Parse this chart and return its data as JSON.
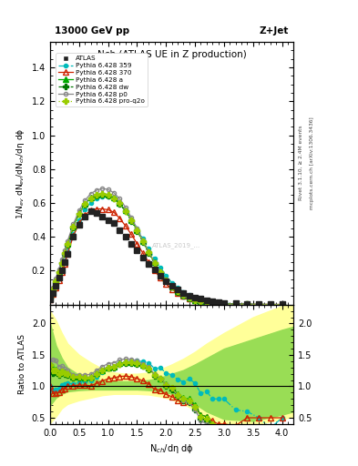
{
  "title_main": "Nch (ATLAS UE in Z production)",
  "title_top_left": "13000 GeV pp",
  "title_top_right": "Z+Jet",
  "ylabel_main": "1/N$_{ev}$ dN$_{ev}$/dN$_{ch}$/dη dϕ",
  "ylabel_ratio": "Ratio to ATLAS",
  "xlabel": "N$_{ch}$/dη dϕ",
  "right_label_top": "Rivet 3.1.10, ≥ 2.4M events",
  "right_label_bot": "mcplots.cern.ch [arXiv:1306.3436]",
  "watermark": "ATLAS_2019_...",
  "xlim": [
    0,
    4.2
  ],
  "ylim_main": [
    0,
    1.55
  ],
  "ylim_ratio": [
    0.4,
    2.3
  ],
  "yticks_main": [
    0.2,
    0.4,
    0.6,
    0.8,
    1.0,
    1.2,
    1.4
  ],
  "yticks_ratio": [
    0.5,
    1.0,
    1.5,
    2.0
  ],
  "x_atlas": [
    0.0,
    0.05,
    0.1,
    0.15,
    0.2,
    0.25,
    0.3,
    0.4,
    0.5,
    0.6,
    0.7,
    0.8,
    0.9,
    1.0,
    1.1,
    1.2,
    1.3,
    1.4,
    1.5,
    1.6,
    1.7,
    1.8,
    1.9,
    2.0,
    2.1,
    2.2,
    2.3,
    2.4,
    2.5,
    2.6,
    2.7,
    2.8,
    2.9,
    3.0,
    3.2,
    3.4,
    3.6,
    3.8,
    4.0
  ],
  "y_atlas": [
    0.03,
    0.07,
    0.11,
    0.16,
    0.2,
    0.25,
    0.3,
    0.4,
    0.47,
    0.52,
    0.55,
    0.54,
    0.52,
    0.5,
    0.48,
    0.44,
    0.4,
    0.36,
    0.32,
    0.28,
    0.24,
    0.21,
    0.17,
    0.14,
    0.11,
    0.09,
    0.07,
    0.05,
    0.04,
    0.035,
    0.025,
    0.02,
    0.015,
    0.01,
    0.008,
    0.005,
    0.004,
    0.003,
    0.002
  ],
  "atlas_color": "#222222",
  "series": [
    {
      "name": "Pythia 6.428 359",
      "color": "#00BBBB",
      "linestyle": "-.",
      "marker": "o",
      "markersize": 3,
      "filled": true,
      "x": [
        0.0,
        0.05,
        0.1,
        0.15,
        0.2,
        0.25,
        0.3,
        0.4,
        0.5,
        0.6,
        0.7,
        0.8,
        0.9,
        1.0,
        1.1,
        1.2,
        1.3,
        1.4,
        1.5,
        1.6,
        1.7,
        1.8,
        1.9,
        2.0,
        2.1,
        2.2,
        2.3,
        2.4,
        2.5,
        2.6,
        2.7,
        2.8,
        2.9,
        3.0,
        3.2,
        3.4,
        3.6,
        3.8,
        4.0
      ],
      "y": [
        0.03,
        0.065,
        0.105,
        0.155,
        0.205,
        0.26,
        0.315,
        0.415,
        0.5,
        0.565,
        0.6,
        0.625,
        0.635,
        0.64,
        0.63,
        0.6,
        0.555,
        0.505,
        0.45,
        0.39,
        0.33,
        0.27,
        0.22,
        0.17,
        0.13,
        0.1,
        0.075,
        0.056,
        0.042,
        0.031,
        0.023,
        0.016,
        0.012,
        0.008,
        0.005,
        0.003,
        0.002,
        0.001,
        0.001
      ]
    },
    {
      "name": "Pythia 6.428 370",
      "color": "#CC2200",
      "linestyle": "-",
      "marker": "^",
      "markersize": 4,
      "filled": false,
      "x": [
        0.0,
        0.05,
        0.1,
        0.15,
        0.2,
        0.25,
        0.3,
        0.4,
        0.5,
        0.6,
        0.7,
        0.8,
        0.9,
        1.0,
        1.1,
        1.2,
        1.3,
        1.4,
        1.5,
        1.6,
        1.7,
        1.8,
        1.9,
        2.0,
        2.1,
        2.2,
        2.3,
        2.4,
        2.5,
        2.6,
        2.7,
        2.8,
        2.9,
        3.0,
        3.2,
        3.4,
        3.6,
        3.8,
        4.0
      ],
      "y": [
        0.03,
        0.062,
        0.098,
        0.145,
        0.19,
        0.24,
        0.3,
        0.405,
        0.48,
        0.53,
        0.555,
        0.565,
        0.565,
        0.56,
        0.545,
        0.51,
        0.465,
        0.415,
        0.36,
        0.305,
        0.25,
        0.2,
        0.16,
        0.122,
        0.092,
        0.07,
        0.052,
        0.038,
        0.027,
        0.019,
        0.013,
        0.009,
        0.006,
        0.004,
        0.003,
        0.0025,
        0.002,
        0.0015,
        0.001
      ]
    },
    {
      "name": "Pythia 6.428 a",
      "color": "#00AA00",
      "linestyle": "-",
      "marker": "^",
      "markersize": 4,
      "filled": true,
      "x": [
        0.0,
        0.05,
        0.1,
        0.15,
        0.2,
        0.25,
        0.3,
        0.4,
        0.5,
        0.6,
        0.7,
        0.8,
        0.9,
        1.0,
        1.1,
        1.2,
        1.3,
        1.4,
        1.5,
        1.6,
        1.7,
        1.8,
        1.9,
        2.0,
        2.1,
        2.2,
        2.3,
        2.4,
        2.5,
        2.6,
        2.7,
        2.8,
        2.9,
        3.0,
        3.2,
        3.4,
        3.6,
        3.8,
        4.0
      ],
      "y": [
        0.04,
        0.09,
        0.14,
        0.195,
        0.25,
        0.305,
        0.36,
        0.46,
        0.54,
        0.595,
        0.63,
        0.65,
        0.655,
        0.65,
        0.63,
        0.6,
        0.555,
        0.5,
        0.44,
        0.375,
        0.31,
        0.25,
        0.19,
        0.145,
        0.108,
        0.079,
        0.057,
        0.04,
        0.028,
        0.019,
        0.013,
        0.008,
        0.005,
        0.003,
        0.002,
        0.0015,
        0.001,
        0.001,
        0.0005
      ]
    },
    {
      "name": "Pythia 6.428 dw",
      "color": "#007700",
      "linestyle": "-.",
      "marker": "P",
      "markersize": 4,
      "filled": true,
      "x": [
        0.0,
        0.05,
        0.1,
        0.15,
        0.2,
        0.25,
        0.3,
        0.4,
        0.5,
        0.6,
        0.7,
        0.8,
        0.9,
        1.0,
        1.1,
        1.2,
        1.3,
        1.4,
        1.5,
        1.6,
        1.7,
        1.8,
        1.9,
        2.0,
        2.1,
        2.2,
        2.3,
        2.4,
        2.5,
        2.6,
        2.7,
        2.8,
        2.9,
        3.0,
        3.2,
        3.4,
        3.6,
        3.8,
        4.0
      ],
      "y": [
        0.04,
        0.085,
        0.135,
        0.19,
        0.245,
        0.3,
        0.355,
        0.455,
        0.535,
        0.59,
        0.625,
        0.645,
        0.65,
        0.645,
        0.625,
        0.595,
        0.55,
        0.495,
        0.435,
        0.37,
        0.305,
        0.245,
        0.19,
        0.142,
        0.105,
        0.076,
        0.054,
        0.037,
        0.025,
        0.017,
        0.011,
        0.007,
        0.004,
        0.003,
        0.002,
        0.0015,
        0.001,
        0.0008,
        0.0005
      ]
    },
    {
      "name": "Pythia 6.428 p0",
      "color": "#888888",
      "linestyle": "-",
      "marker": "o",
      "markersize": 3,
      "filled": false,
      "x": [
        0.0,
        0.05,
        0.1,
        0.15,
        0.2,
        0.25,
        0.3,
        0.4,
        0.5,
        0.6,
        0.7,
        0.8,
        0.9,
        1.0,
        1.1,
        1.2,
        1.3,
        1.4,
        1.5,
        1.6,
        1.7,
        1.8,
        1.9,
        2.0,
        2.1,
        2.2,
        2.3,
        2.4,
        2.5,
        2.6,
        2.7,
        2.8,
        2.9,
        3.0,
        3.2,
        3.4,
        3.6,
        3.8,
        4.0
      ],
      "y": [
        0.04,
        0.1,
        0.155,
        0.21,
        0.265,
        0.32,
        0.375,
        0.475,
        0.555,
        0.615,
        0.655,
        0.675,
        0.685,
        0.68,
        0.66,
        0.625,
        0.575,
        0.515,
        0.45,
        0.38,
        0.315,
        0.25,
        0.192,
        0.145,
        0.107,
        0.077,
        0.054,
        0.037,
        0.025,
        0.016,
        0.01,
        0.007,
        0.004,
        0.003,
        0.002,
        0.0015,
        0.001,
        0.0008,
        0.0005
      ]
    },
    {
      "name": "Pythia 6.428 pro-q2o",
      "color": "#99CC00",
      "linestyle": ":",
      "marker": "P",
      "markersize": 4,
      "filled": true,
      "x": [
        0.0,
        0.05,
        0.1,
        0.15,
        0.2,
        0.25,
        0.3,
        0.4,
        0.5,
        0.6,
        0.7,
        0.8,
        0.9,
        1.0,
        1.1,
        1.2,
        1.3,
        1.4,
        1.5,
        1.6,
        1.7,
        1.8,
        1.9,
        2.0,
        2.1,
        2.2,
        2.3,
        2.4,
        2.5,
        2.6,
        2.7,
        2.8,
        2.9,
        3.0,
        3.2,
        3.4,
        3.6,
        3.8,
        4.0
      ],
      "y": [
        0.04,
        0.088,
        0.138,
        0.192,
        0.247,
        0.302,
        0.358,
        0.458,
        0.538,
        0.592,
        0.628,
        0.648,
        0.652,
        0.648,
        0.628,
        0.598,
        0.552,
        0.498,
        0.438,
        0.372,
        0.308,
        0.248,
        0.192,
        0.144,
        0.107,
        0.078,
        0.056,
        0.039,
        0.027,
        0.018,
        0.012,
        0.008,
        0.005,
        0.003,
        0.002,
        0.0015,
        0.001,
        0.0008,
        0.0005
      ]
    }
  ],
  "band_x": [
    0.0,
    0.1,
    0.2,
    0.3,
    0.5,
    0.7,
    0.9,
    1.1,
    1.3,
    1.5,
    1.7,
    1.9,
    2.1,
    2.3,
    2.5,
    2.7,
    3.0,
    3.5,
    4.0,
    4.2
  ],
  "band_green_low": [
    0.7,
    0.82,
    0.88,
    0.92,
    0.94,
    0.95,
    0.95,
    0.95,
    0.95,
    0.95,
    0.94,
    0.92,
    0.88,
    0.82,
    0.72,
    0.6,
    0.48,
    0.45,
    0.55,
    0.6
  ],
  "band_green_high": [
    2.0,
    1.65,
    1.45,
    1.3,
    1.18,
    1.12,
    1.09,
    1.08,
    1.08,
    1.08,
    1.1,
    1.14,
    1.2,
    1.26,
    1.35,
    1.45,
    1.6,
    1.75,
    1.9,
    1.95
  ],
  "band_yellow_low": [
    0.42,
    0.52,
    0.65,
    0.72,
    0.78,
    0.82,
    0.86,
    0.88,
    0.88,
    0.88,
    0.87,
    0.84,
    0.79,
    0.72,
    0.62,
    0.5,
    0.4,
    0.38,
    0.48,
    0.52
  ],
  "band_yellow_high": [
    2.2,
    2.05,
    1.85,
    1.68,
    1.5,
    1.38,
    1.28,
    1.22,
    1.2,
    1.2,
    1.22,
    1.27,
    1.35,
    1.44,
    1.55,
    1.68,
    1.85,
    2.1,
    2.28,
    2.3
  ]
}
